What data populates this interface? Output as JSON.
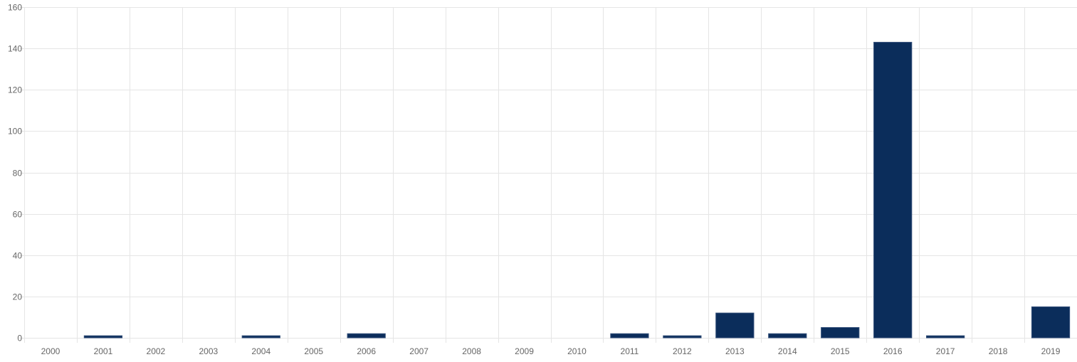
{
  "chart_data": {
    "type": "bar",
    "title": "",
    "xlabel": "",
    "ylabel": "",
    "categories": [
      "2000",
      "2001",
      "2002",
      "2003",
      "2004",
      "2005",
      "2006",
      "2007",
      "2008",
      "2009",
      "2010",
      "2011",
      "2012",
      "2013",
      "2014",
      "2015",
      "2016",
      "2017",
      "2018",
      "2019"
    ],
    "values": [
      0,
      1,
      0,
      0,
      1,
      0,
      2,
      0,
      0,
      0,
      0,
      2,
      1,
      12,
      2,
      5,
      143,
      1,
      0,
      15
    ],
    "ylim": [
      0,
      160
    ],
    "yticks": [
      0,
      20,
      40,
      60,
      80,
      100,
      120,
      140,
      160
    ],
    "grid": true,
    "legend": "none",
    "colors": {
      "bar_fill": "#0b2d5b",
      "bar_stroke": "#34507a",
      "grid": "#e5e5e5",
      "axis_text": "#666666"
    }
  }
}
